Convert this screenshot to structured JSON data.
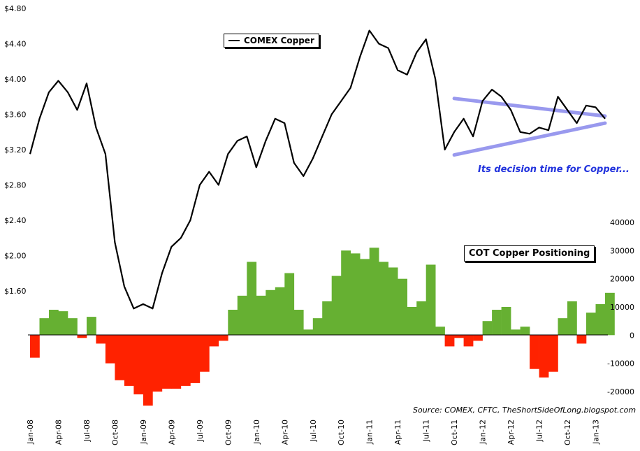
{
  "chart_data": [
    {
      "type": "line",
      "series": [
        {
          "name": "COMEX Copper",
          "x": [
            "2008-01",
            "2008-02",
            "2008-03",
            "2008-04",
            "2008-05",
            "2008-06",
            "2008-07",
            "2008-08",
            "2008-09",
            "2008-10",
            "2008-11",
            "2008-12",
            "2009-01",
            "2009-02",
            "2009-03",
            "2009-04",
            "2009-05",
            "2009-06",
            "2009-07",
            "2009-08",
            "2009-09",
            "2009-10",
            "2009-11",
            "2009-12",
            "2010-01",
            "2010-02",
            "2010-03",
            "2010-04",
            "2010-05",
            "2010-06",
            "2010-07",
            "2010-08",
            "2010-09",
            "2010-10",
            "2010-11",
            "2010-12",
            "2011-01",
            "2011-02",
            "2011-03",
            "2011-04",
            "2011-05",
            "2011-06",
            "2011-07",
            "2011-08",
            "2011-09",
            "2011-10",
            "2011-11",
            "2011-12",
            "2012-01",
            "2012-02",
            "2012-03",
            "2012-04",
            "2012-05",
            "2012-06",
            "2012-07",
            "2012-08",
            "2012-09",
            "2012-10",
            "2012-11",
            "2012-12",
            "2013-01",
            "2013-02"
          ],
          "values": [
            3.15,
            3.55,
            3.85,
            3.98,
            3.85,
            3.65,
            3.95,
            3.45,
            3.15,
            2.15,
            1.65,
            1.4,
            1.45,
            1.4,
            1.8,
            2.1,
            2.2,
            2.4,
            2.8,
            2.95,
            2.8,
            3.15,
            3.3,
            3.35,
            3.0,
            3.3,
            3.55,
            3.5,
            3.05,
            2.9,
            3.1,
            3.35,
            3.6,
            3.75,
            3.9,
            4.25,
            4.55,
            4.4,
            4.35,
            4.1,
            4.05,
            4.3,
            4.45,
            4.0,
            3.2,
            3.4,
            3.55,
            3.35,
            3.75,
            3.88,
            3.8,
            3.65,
            3.4,
            3.38,
            3.45,
            3.42,
            3.8,
            3.65,
            3.5,
            3.7,
            3.68,
            3.55
          ]
        }
      ],
      "ylim": [
        1.2,
        4.8
      ],
      "yticks": [
        "$1.60",
        "$2.00",
        "$2.40",
        "$2.80",
        "$3.20",
        "$3.60",
        "$4.00",
        "$4.40",
        "$4.80"
      ],
      "ytick_values": [
        1.6,
        2.0,
        2.4,
        2.8,
        3.2,
        3.6,
        4.0,
        4.4,
        4.8
      ],
      "grid": false,
      "legend": "top-center",
      "annotation": "Its decision time for Copper...",
      "trendlines": [
        {
          "from": [
            "2011-10",
            3.78
          ],
          "to": [
            "2013-02",
            3.58
          ]
        },
        {
          "from": [
            "2011-10",
            3.14
          ],
          "to": [
            "2013-02",
            3.5
          ]
        }
      ],
      "trendline_color": "#9999ee"
    },
    {
      "type": "bar",
      "series": [
        {
          "name": "COT Copper Positioning",
          "x": [
            "2008-01",
            "2008-02",
            "2008-03",
            "2008-04",
            "2008-05",
            "2008-06",
            "2008-07",
            "2008-08",
            "2008-09",
            "2008-10",
            "2008-11",
            "2008-12",
            "2009-01",
            "2009-02",
            "2009-03",
            "2009-04",
            "2009-05",
            "2009-06",
            "2009-07",
            "2009-08",
            "2009-09",
            "2009-10",
            "2009-11",
            "2009-12",
            "2010-01",
            "2010-02",
            "2010-03",
            "2010-04",
            "2010-05",
            "2010-06",
            "2010-07",
            "2010-08",
            "2010-09",
            "2010-10",
            "2010-11",
            "2010-12",
            "2011-01",
            "2011-02",
            "2011-03",
            "2011-04",
            "2011-05",
            "2011-06",
            "2011-07",
            "2011-08",
            "2011-09",
            "2011-10",
            "2011-11",
            "2011-12",
            "2012-01",
            "2012-02",
            "2012-03",
            "2012-04",
            "2012-05",
            "2012-06",
            "2012-07",
            "2012-08",
            "2012-09",
            "2012-10",
            "2012-11",
            "2012-12",
            "2013-01",
            "2013-02"
          ],
          "values": [
            -8000,
            6000,
            9000,
            8500,
            6000,
            -1000,
            6500,
            -3000,
            -10000,
            -16000,
            -18000,
            -21000,
            -25000,
            -20000,
            -19000,
            -19000,
            -18000,
            -17000,
            -13000,
            -4000,
            -2000,
            9000,
            14000,
            26000,
            14000,
            16000,
            17000,
            22000,
            9000,
            2000,
            6000,
            12000,
            21000,
            30000,
            29000,
            27000,
            31000,
            26000,
            24000,
            20000,
            10000,
            12000,
            25000,
            3000,
            -4000,
            -1000,
            -4000,
            -2000,
            5000,
            9000,
            10000,
            2000,
            3000,
            -12000,
            -15000,
            -13000,
            6000,
            12000,
            -3000,
            8000,
            11000,
            15000
          ]
        }
      ],
      "ylim": [
        -25000,
        40000
      ],
      "yticks": [
        "-20000",
        "-10000",
        "0",
        "10000",
        "20000",
        "30000",
        "40000"
      ],
      "ytick_values": [
        -20000,
        -10000,
        0,
        10000,
        20000,
        30000,
        40000
      ],
      "positive_color": "#66b032",
      "negative_color": "#ff2200",
      "legend": "center-right"
    }
  ],
  "x_axis": {
    "tick_labels": [
      "Jan-08",
      "Apr-08",
      "Jul-08",
      "Oct-08",
      "Jan-09",
      "Apr-09",
      "Jul-09",
      "Oct-09",
      "Jan-10",
      "Apr-10",
      "Jul-10",
      "Oct-10",
      "Jan-11",
      "Apr-11",
      "Jul-11",
      "Oct-11",
      "Jan-12",
      "Apr-12",
      "Jul-12",
      "Oct-12",
      "Jan-13"
    ],
    "tick_months": [
      "2008-01",
      "2008-04",
      "2008-07",
      "2008-10",
      "2009-01",
      "2009-04",
      "2009-07",
      "2009-10",
      "2010-01",
      "2010-04",
      "2010-07",
      "2010-10",
      "2011-01",
      "2011-04",
      "2011-07",
      "2011-10",
      "2012-01",
      "2012-04",
      "2012-07",
      "2012-10",
      "2013-01"
    ]
  },
  "source": "Source: COMEX, CFTC, TheShortSideOfLong.blogspot.com"
}
